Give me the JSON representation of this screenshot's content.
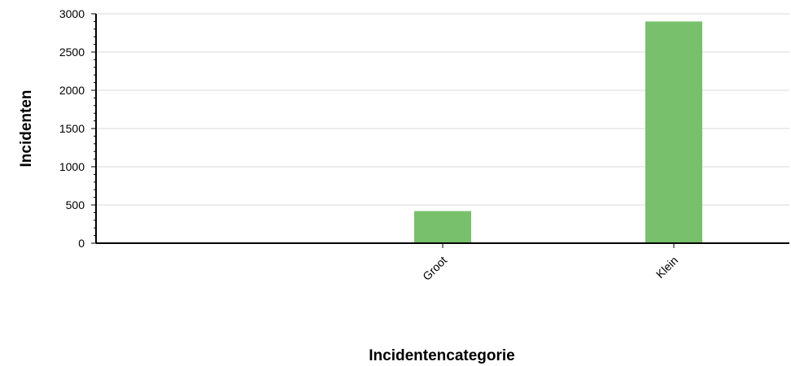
{
  "chart_data": {
    "type": "bar",
    "categories": [
      "Groot",
      "Klein"
    ],
    "values": [
      420,
      2900
    ],
    "xlabel": "Incidentencategorie",
    "ylabel": "Incidenten",
    "ylim": [
      0,
      3000
    ],
    "yticks": [
      0,
      500,
      1000,
      1500,
      2000,
      2500,
      3000
    ],
    "grid": true,
    "legend": "none",
    "bar_color": "#78c06b",
    "grid_color": "#d9d9d9",
    "axis_color": "#000000"
  }
}
